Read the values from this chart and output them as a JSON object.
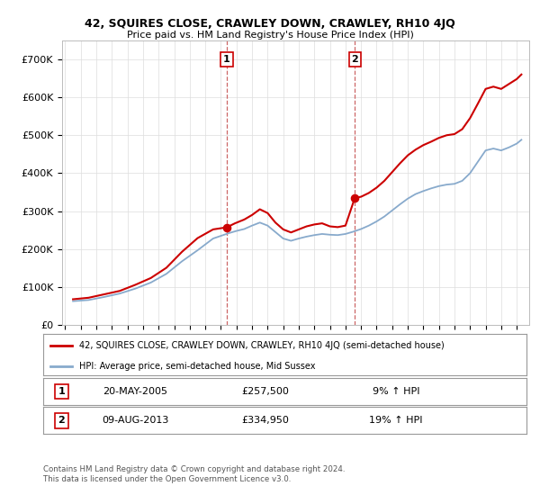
{
  "title": "42, SQUIRES CLOSE, CRAWLEY DOWN, CRAWLEY, RH10 4JQ",
  "subtitle": "Price paid vs. HM Land Registry's House Price Index (HPI)",
  "legend_label_red": "42, SQUIRES CLOSE, CRAWLEY DOWN, CRAWLEY, RH10 4JQ (semi-detached house)",
  "legend_label_blue": "HPI: Average price, semi-detached house, Mid Sussex",
  "transaction1_label": "1",
  "transaction1_date": "20-MAY-2005",
  "transaction1_price": "£257,500",
  "transaction1_hpi": "9% ↑ HPI",
  "transaction2_label": "2",
  "transaction2_date": "09-AUG-2013",
  "transaction2_price": "£334,950",
  "transaction2_hpi": "19% ↑ HPI",
  "footer": "Contains HM Land Registry data © Crown copyright and database right 2024.\nThis data is licensed under the Open Government Licence v3.0.",
  "red_color": "#cc0000",
  "blue_color": "#88aacc",
  "grid_color": "#dddddd",
  "bg_color": "#ffffff",
  "ylim_min": 0,
  "ylim_max": 750000,
  "yticks": [
    0,
    100000,
    200000,
    300000,
    400000,
    500000,
    600000,
    700000
  ],
  "ytick_labels": [
    "£0",
    "£100K",
    "£200K",
    "£300K",
    "£400K",
    "£500K",
    "£600K",
    "£700K"
  ],
  "transaction1_x": 2005.38,
  "transaction1_y": 257500,
  "transaction2_x": 2013.6,
  "transaction2_y": 334950,
  "vline1_x": 2005.38,
  "vline2_x": 2013.6,
  "xmin": 1994.8,
  "xmax": 2024.8,
  "years_hpi": [
    1995.5,
    1996.5,
    1997.5,
    1998.5,
    1999.5,
    2000.5,
    2001.5,
    2002.5,
    2003.5,
    2004.5,
    2005.0,
    2005.5,
    2006.0,
    2006.5,
    2007.0,
    2007.5,
    2008.0,
    2008.5,
    2009.0,
    2009.5,
    2010.0,
    2010.5,
    2011.0,
    2011.5,
    2012.0,
    2012.5,
    2013.0,
    2013.5,
    2014.0,
    2014.5,
    2015.0,
    2015.5,
    2016.0,
    2016.5,
    2017.0,
    2017.5,
    2018.0,
    2018.5,
    2019.0,
    2019.5,
    2020.0,
    2020.5,
    2021.0,
    2021.5,
    2022.0,
    2022.5,
    2023.0,
    2023.5,
    2024.0,
    2024.3
  ],
  "hpi_values": [
    63000,
    66000,
    74000,
    83000,
    96000,
    112000,
    135000,
    168000,
    197000,
    228000,
    235000,
    242000,
    248000,
    253000,
    262000,
    270000,
    262000,
    245000,
    228000,
    222000,
    228000,
    233000,
    237000,
    240000,
    238000,
    237000,
    240000,
    246000,
    253000,
    262000,
    273000,
    286000,
    302000,
    318000,
    333000,
    345000,
    353000,
    360000,
    366000,
    370000,
    372000,
    380000,
    400000,
    430000,
    460000,
    465000,
    460000,
    468000,
    478000,
    488000
  ],
  "years_red": [
    1995.5,
    1996.5,
    1997.5,
    1998.5,
    1999.5,
    2000.5,
    2001.5,
    2002.5,
    2003.5,
    2004.5,
    2005.38,
    2005.9,
    2006.5,
    2007.0,
    2007.5,
    2008.0,
    2008.5,
    2009.0,
    2009.5,
    2010.0,
    2010.5,
    2011.0,
    2011.5,
    2012.0,
    2012.5,
    2013.0,
    2013.6,
    2014.0,
    2014.5,
    2015.0,
    2015.5,
    2016.0,
    2016.5,
    2017.0,
    2017.5,
    2018.0,
    2018.5,
    2019.0,
    2019.5,
    2020.0,
    2020.5,
    2021.0,
    2021.5,
    2022.0,
    2022.5,
    2023.0,
    2023.5,
    2024.0,
    2024.3
  ],
  "red_values": [
    68000,
    72000,
    81000,
    90000,
    106000,
    124000,
    151000,
    193000,
    229000,
    252000,
    257500,
    268000,
    278000,
    290000,
    305000,
    295000,
    270000,
    252000,
    244000,
    252000,
    260000,
    265000,
    268000,
    260000,
    258000,
    262000,
    334950,
    338000,
    348000,
    362000,
    380000,
    403000,
    426000,
    447000,
    462000,
    474000,
    483000,
    493000,
    500000,
    503000,
    516000,
    545000,
    583000,
    622000,
    628000,
    622000,
    635000,
    648000,
    660000
  ]
}
